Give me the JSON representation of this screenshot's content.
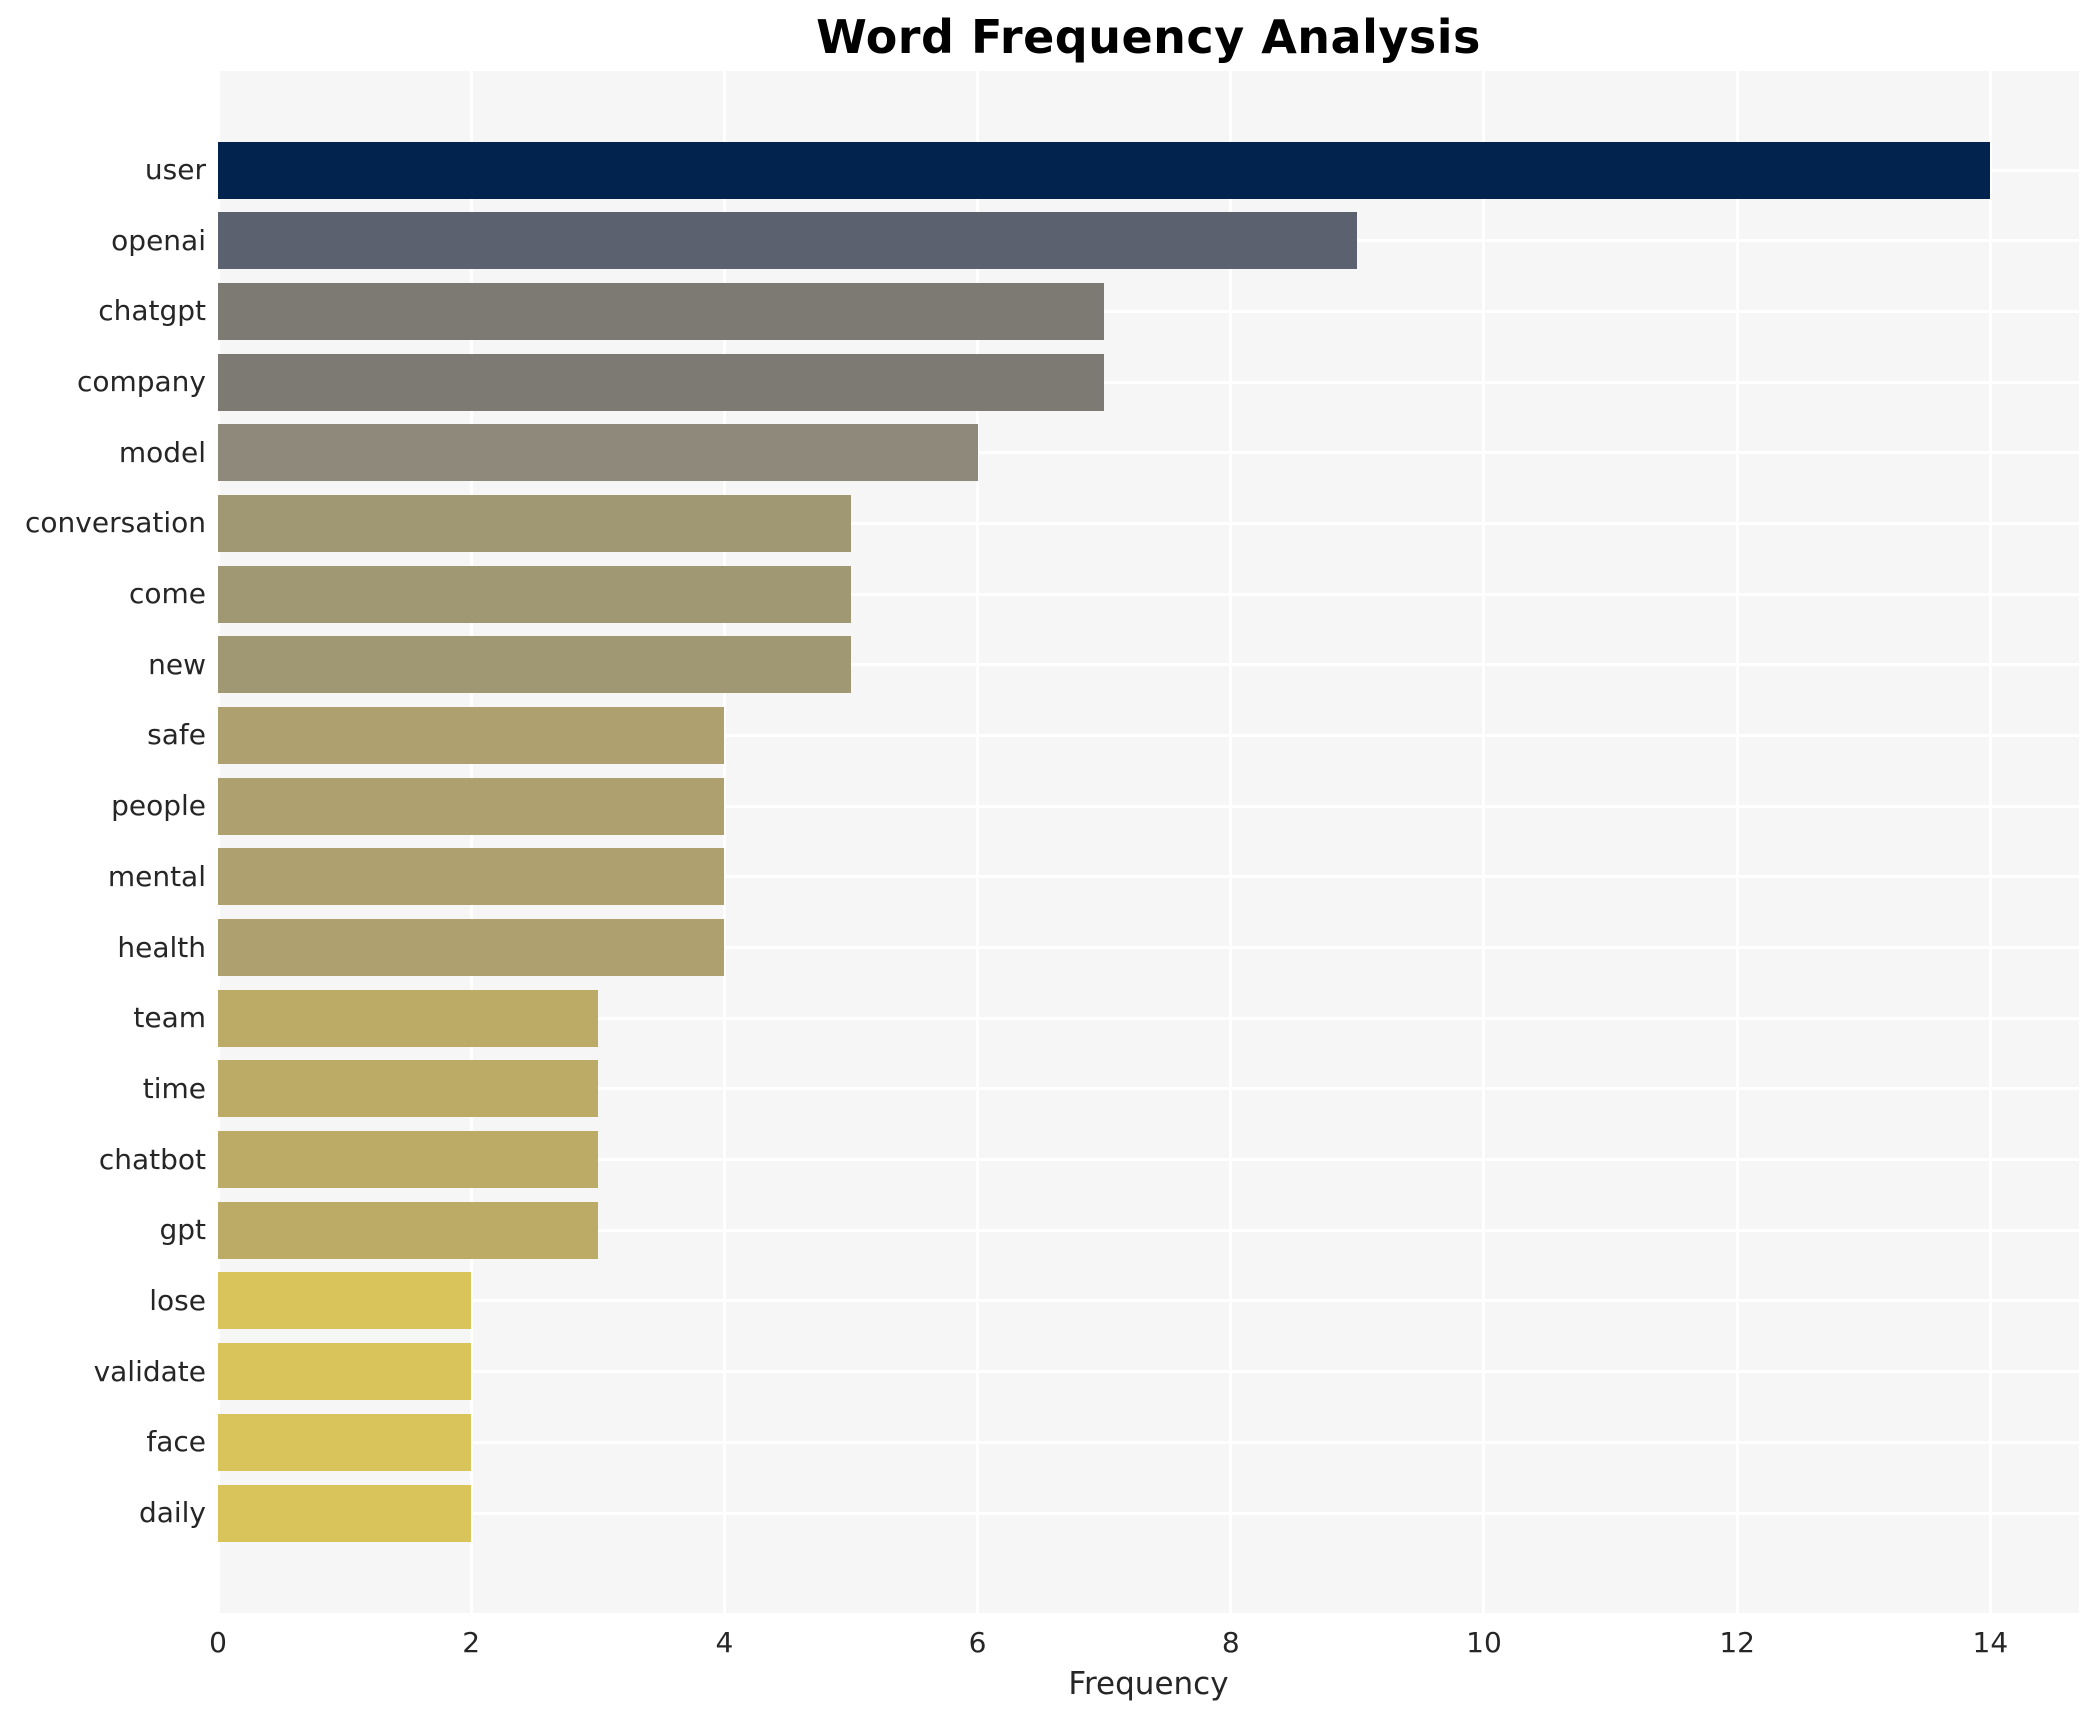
{
  "chart_data": {
    "type": "bar",
    "orientation": "horizontal",
    "title": "Word Frequency Analysis",
    "xlabel": "Frequency",
    "ylabel": "",
    "categories": [
      "user",
      "openai",
      "chatgpt",
      "company",
      "model",
      "conversation",
      "come",
      "new",
      "safe",
      "people",
      "mental",
      "health",
      "team",
      "time",
      "chatbot",
      "gpt",
      "lose",
      "validate",
      "face",
      "daily"
    ],
    "values": [
      14,
      9,
      7,
      7,
      6,
      5,
      5,
      5,
      4,
      4,
      4,
      4,
      3,
      3,
      3,
      3,
      2,
      2,
      2,
      2
    ],
    "bar_colors": [
      "#02234d",
      "#5c6170",
      "#7c7a72",
      "#7c7a72",
      "#8e897b",
      "#a09873",
      "#a09873",
      "#a09873",
      "#aea16f",
      "#aea16f",
      "#aea16f",
      "#aea16f",
      "#bcab66",
      "#bcab66",
      "#bcab66",
      "#bcab66",
      "#d9c45c",
      "#d9c45c",
      "#d9c45c",
      "#d9c45c"
    ],
    "x_ticks": [
      "0",
      "2",
      "4",
      "6",
      "8",
      "10",
      "12",
      "14"
    ],
    "x_tick_values": [
      0,
      2,
      4,
      6,
      8,
      10,
      12,
      14
    ],
    "xlim": [
      0,
      14.7
    ],
    "grid": "white lines on light gray background",
    "legend": false,
    "colormap": "cividis-reversed-by-value",
    "colors": {
      "plot_background": "#f6f6f7",
      "figure_background": "#ffffff",
      "grid_line": "#ffffff",
      "text": "#262626",
      "title_text": "#000000"
    }
  }
}
